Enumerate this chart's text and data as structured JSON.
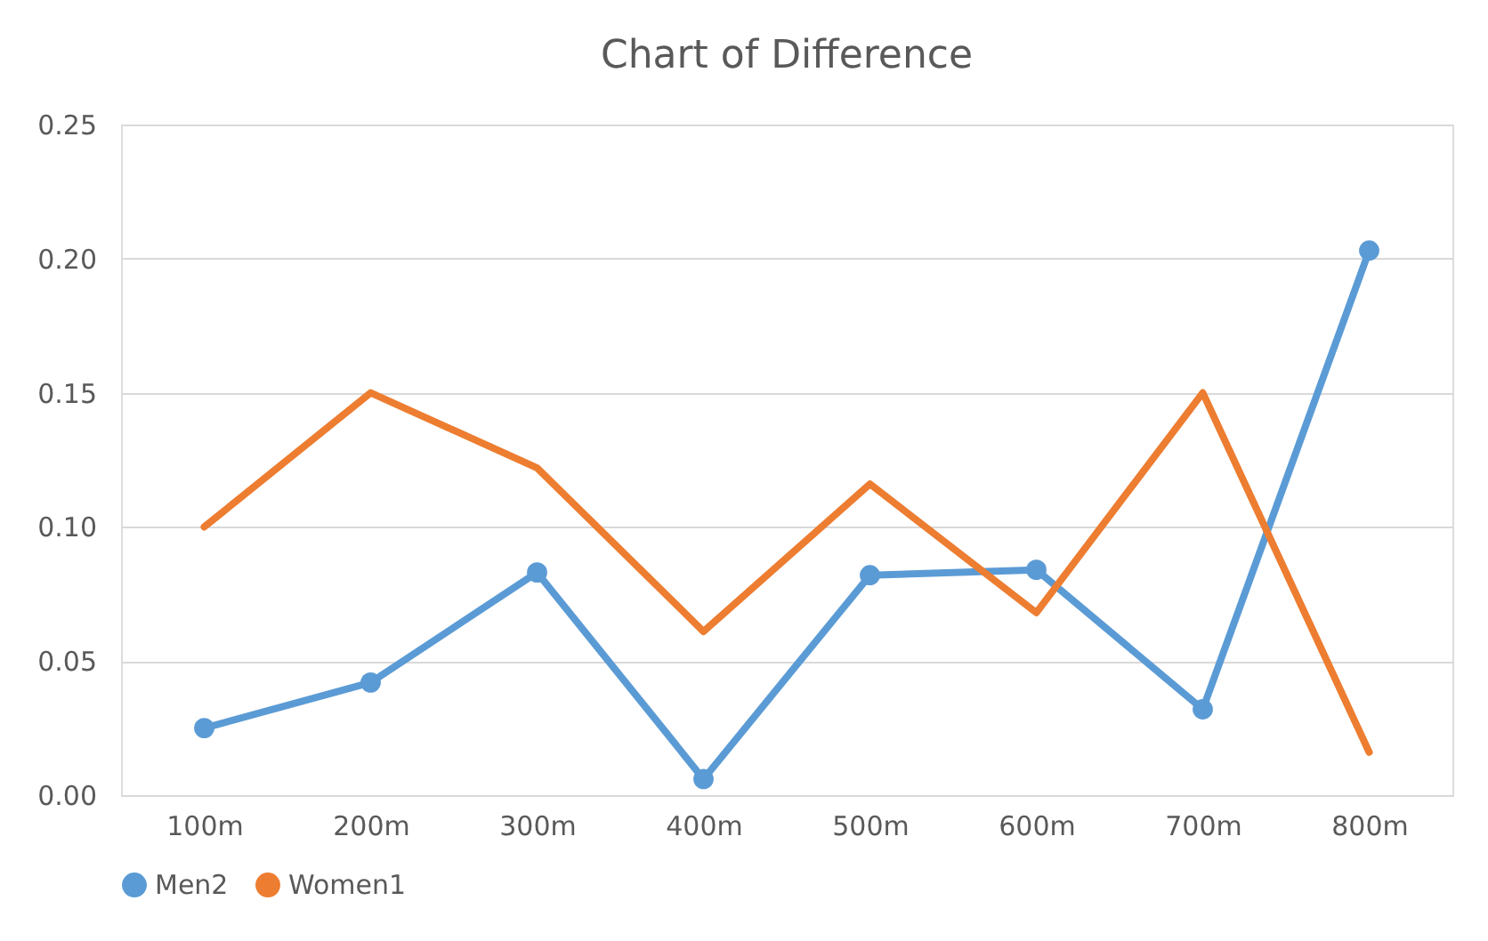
{
  "chart_data": {
    "type": "line",
    "title": "Chart of Difference",
    "categories": [
      "100m",
      "200m",
      "300m",
      "400m",
      "500m",
      "600m",
      "700m",
      "800m"
    ],
    "series": [
      {
        "name": "Men2",
        "color": "#5b9bd5",
        "marker": "circle",
        "values": [
          0.025,
          0.042,
          0.083,
          0.006,
          0.082,
          0.084,
          0.032,
          0.203
        ]
      },
      {
        "name": "Women1",
        "color": "#ed7d31",
        "marker": "none",
        "values": [
          0.1,
          0.15,
          0.122,
          0.061,
          0.116,
          0.068,
          0.15,
          0.016
        ]
      }
    ],
    "ylim": [
      0,
      0.25
    ],
    "yticks": [
      {
        "value": 0,
        "label": "0.00"
      },
      {
        "value": 0.05,
        "label": "0.05"
      },
      {
        "value": 0.1,
        "label": "0.10"
      },
      {
        "value": 0.15,
        "label": "0.15"
      },
      {
        "value": 0.2,
        "label": "0.20"
      },
      {
        "value": 0.25,
        "label": "0.25"
      }
    ],
    "grid": "y",
    "legend": "bottom",
    "line_style": "solid"
  }
}
